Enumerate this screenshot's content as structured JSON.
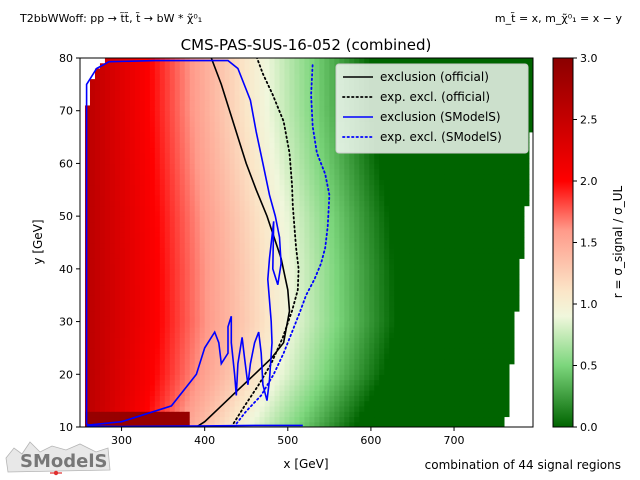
{
  "header": {
    "left": "T2bbWWoff: pp → t̃t̃, t̃ → bW * χ̃⁰₁",
    "right": "m_t̃ = x, m_χ̃⁰₁ = x − y"
  },
  "footer": {
    "signal_regions": "combination of 44 signal regions"
  },
  "logo": {
    "text": "SModelS"
  },
  "chart_data": {
    "type": "heatmap",
    "title": "CMS-PAS-SUS-16-052 (combined)",
    "xlabel": "x [GeV]",
    "ylabel": "y [GeV]",
    "xlim": [
      250,
      795
    ],
    "ylim": [
      10,
      80
    ],
    "xticks": [
      300,
      400,
      500,
      600,
      700
    ],
    "yticks": [
      10,
      20,
      30,
      40,
      50,
      60,
      70,
      80
    ],
    "colorbar": {
      "label": "r = σ_signal / σ_UL",
      "range": [
        0.0,
        3.0
      ],
      "ticks": [
        "0.0",
        "0.5",
        "1.0",
        "1.5",
        "2.0",
        "2.5",
        "3.0"
      ],
      "colormap": [
        {
          "value": 0.0,
          "color": "#006400"
        },
        {
          "value": 0.5,
          "color": "#7cd67c"
        },
        {
          "value": 0.9,
          "color": "#f0f7dc"
        },
        {
          "value": 1.1,
          "color": "#fbe6c8"
        },
        {
          "value": 1.6,
          "color": "#ff9a8a"
        },
        {
          "value": 2.0,
          "color": "#ff0000"
        },
        {
          "value": 3.0,
          "color": "#8b0000"
        }
      ]
    },
    "legend": {
      "position": "top-right",
      "entries": [
        {
          "label": "exclusion (official)",
          "color": "#000000",
          "style": "solid"
        },
        {
          "label": "exp. excl. (official)",
          "color": "#000000",
          "style": "dotted"
        },
        {
          "label": "exclusion (SModelS)",
          "color": "#0000ff",
          "style": "solid"
        },
        {
          "label": "exp. excl. (SModelS)",
          "color": "#0000ff",
          "style": "dotted"
        }
      ]
    },
    "heatmap_shape": {
      "coverage_edges": [
        {
          "y": 10,
          "x_min": 258,
          "x_max": 762
        },
        {
          "y": 20,
          "x_min": 258,
          "x_max": 768
        },
        {
          "y": 30,
          "x_min": 258,
          "x_max": 774
        },
        {
          "y": 40,
          "x_min": 258,
          "x_max": 780
        },
        {
          "y": 50,
          "x_min": 258,
          "x_max": 786
        },
        {
          "y": 60,
          "x_min": 258,
          "x_max": 790
        },
        {
          "y": 70,
          "x_min": 258,
          "x_max": 795
        },
        {
          "y": 75,
          "x_min": 262,
          "x_max": 795
        },
        {
          "y": 80,
          "x_min": 280,
          "x_max": 795
        }
      ],
      "r_equals_one_x": [
        {
          "y": 10,
          "x": 440
        },
        {
          "y": 20,
          "x": 475
        },
        {
          "y": 30,
          "x": 490
        },
        {
          "y": 40,
          "x": 488
        },
        {
          "y": 50,
          "x": 482
        },
        {
          "y": 60,
          "x": 470
        },
        {
          "y": 70,
          "x": 462
        },
        {
          "y": 80,
          "x": 460
        }
      ]
    },
    "series": [
      {
        "name": "exclusion (official)",
        "color": "#000000",
        "style": "solid",
        "points": [
          [
            390,
            10
          ],
          [
            400,
            11
          ],
          [
            420,
            14
          ],
          [
            440,
            17
          ],
          [
            460,
            20
          ],
          [
            480,
            23
          ],
          [
            495,
            26
          ],
          [
            502,
            32
          ],
          [
            500,
            36
          ],
          [
            492,
            42
          ],
          [
            475,
            50
          ],
          [
            462,
            55
          ],
          [
            450,
            60
          ],
          [
            440,
            65
          ],
          [
            430,
            70
          ],
          [
            420,
            75
          ],
          [
            408,
            80
          ]
        ]
      },
      {
        "name": "exp. excl. (official)",
        "color": "#000000",
        "style": "dotted",
        "points": [
          [
            432,
            10
          ],
          [
            448,
            14
          ],
          [
            465,
            18
          ],
          [
            480,
            22
          ],
          [
            494,
            27
          ],
          [
            505,
            32
          ],
          [
            512,
            36
          ],
          [
            513,
            40
          ],
          [
            510,
            44
          ],
          [
            508,
            48
          ],
          [
            506,
            52
          ],
          [
            505,
            56
          ],
          [
            502,
            62
          ],
          [
            495,
            68
          ],
          [
            482,
            73
          ],
          [
            470,
            77
          ],
          [
            463,
            80
          ]
        ]
      },
      {
        "name": "exclusion (SModelS)",
        "color": "#0000ff",
        "style": "solid",
        "points": [
          [
            258,
            10.5
          ],
          [
            258,
            35
          ],
          [
            258,
            60
          ],
          [
            258,
            75
          ],
          [
            262,
            76
          ],
          [
            270,
            78
          ],
          [
            285,
            79.3
          ],
          [
            340,
            79.5
          ],
          [
            395,
            79.5
          ],
          [
            428,
            79.5
          ],
          [
            440,
            78
          ],
          [
            455,
            72
          ],
          [
            462,
            66
          ],
          [
            470,
            60
          ],
          [
            478,
            54
          ],
          [
            485,
            50
          ],
          [
            490,
            46
          ],
          [
            492,
            41
          ],
          [
            488,
            37
          ],
          [
            482,
            40
          ],
          [
            483,
            49
          ],
          [
            478,
            42
          ],
          [
            476,
            38
          ],
          [
            480,
            30
          ],
          [
            481,
            26
          ],
          [
            478,
            19
          ],
          [
            475,
            15
          ],
          [
            470,
            18
          ],
          [
            468,
            24
          ],
          [
            465,
            28
          ],
          [
            460,
            26
          ],
          [
            455,
            22
          ],
          [
            452,
            18
          ],
          [
            448,
            23
          ],
          [
            445,
            27
          ],
          [
            440,
            22
          ],
          [
            438,
            16
          ],
          [
            436,
            20
          ],
          [
            432,
            26
          ],
          [
            432,
            31
          ],
          [
            428,
            29
          ],
          [
            428,
            24
          ],
          [
            420,
            22
          ],
          [
            417,
            26
          ],
          [
            412,
            28
          ],
          [
            400,
            25
          ],
          [
            390,
            20
          ],
          [
            360,
            14
          ],
          [
            300,
            11
          ],
          [
            262,
            10.4
          ],
          [
            258,
            10.5
          ]
        ]
      },
      {
        "name": "exp. excl. (SModelS)",
        "color": "#0000ff",
        "style": "dotted",
        "points": [
          [
            435,
            10
          ],
          [
            450,
            13
          ],
          [
            468,
            16
          ],
          [
            483,
            20
          ],
          [
            495,
            24
          ],
          [
            505,
            28
          ],
          [
            515,
            32
          ],
          [
            522,
            35
          ],
          [
            532,
            38
          ],
          [
            540,
            41
          ],
          [
            545,
            44
          ],
          [
            548,
            48
          ],
          [
            550,
            54
          ],
          [
            545,
            58
          ],
          [
            535,
            62
          ],
          [
            530,
            67
          ],
          [
            528,
            73
          ],
          [
            530,
            79
          ]
        ]
      },
      {
        "name": "exclusion (SModelS) base",
        "color": "#0000ff",
        "style": "solid",
        "points": [
          [
            258,
            10.2
          ],
          [
            300,
            10.1
          ],
          [
            400,
            10.2
          ],
          [
            470,
            10.3
          ],
          [
            518,
            10.3
          ]
        ]
      }
    ]
  }
}
